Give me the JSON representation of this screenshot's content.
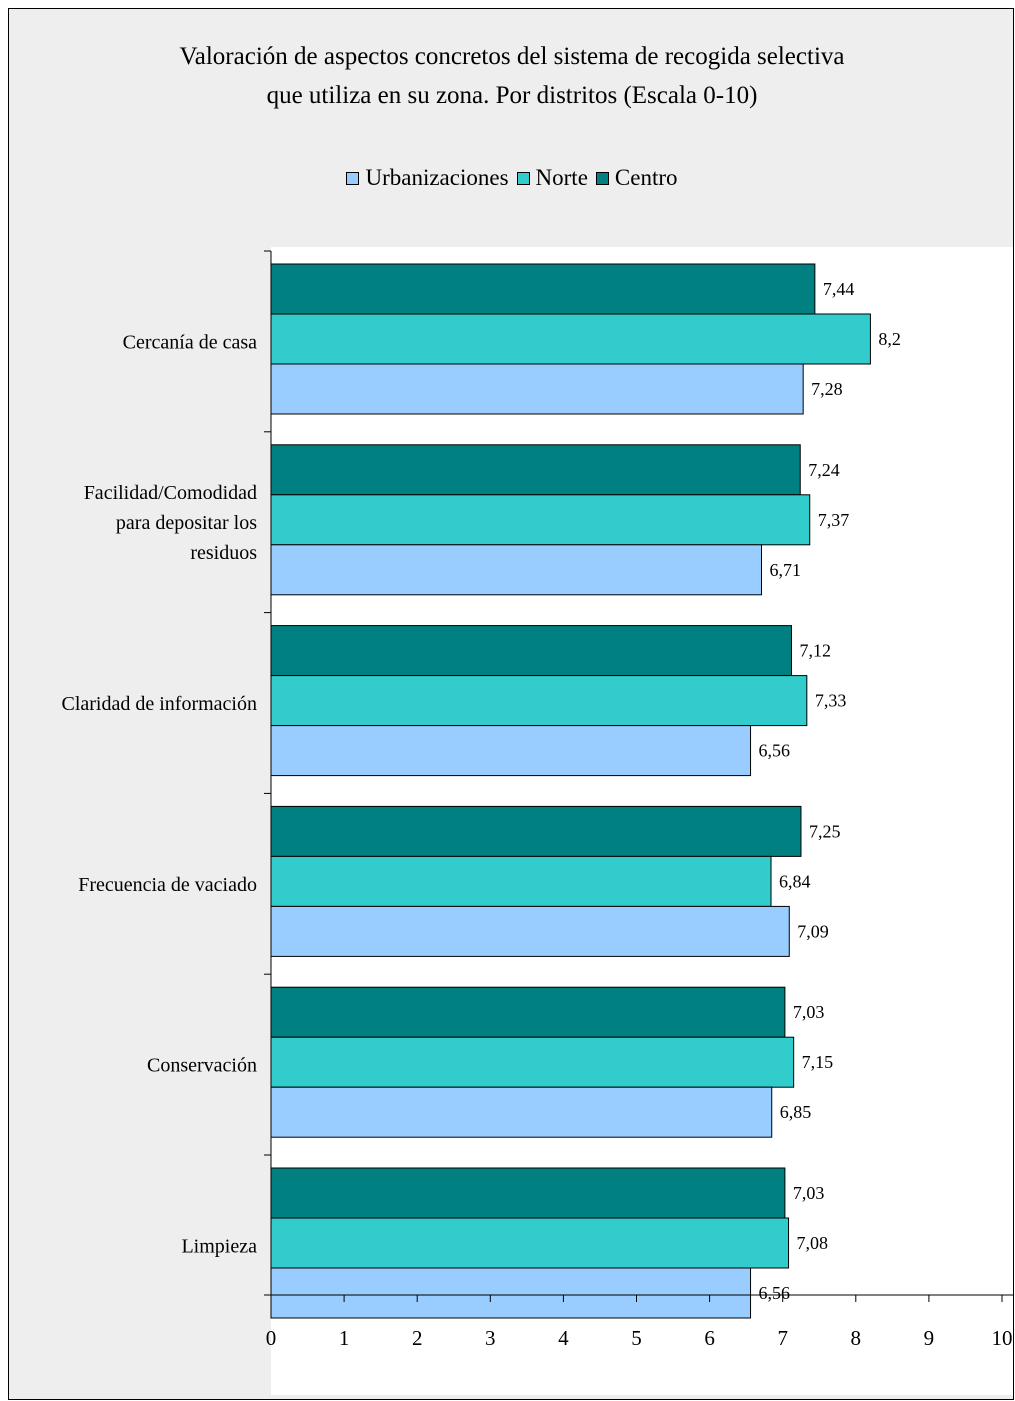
{
  "chart_data": {
    "type": "bar",
    "orientation": "horizontal",
    "title": "Valoración de aspectos concretos del sistema de recogida selectiva\nque utiliza en su zona.  Por distritos (Escala 0-10)",
    "categories": [
      "Cercanía de casa",
      "Facilidad/Comodidad para depositar los residuos",
      "Claridad de información",
      "Frecuencia de vaciado",
      "Conservación",
      "Limpieza"
    ],
    "category_lines": [
      [
        "Cercanía de casa"
      ],
      [
        "Facilidad/Comodidad",
        "para depositar los",
        "residuos"
      ],
      [
        "Claridad de información"
      ],
      [
        "Frecuencia de vaciado"
      ],
      [
        "Conservación"
      ],
      [
        "Limpieza"
      ]
    ],
    "series": [
      {
        "name": "Urbanizaciones",
        "color": "#99ccff",
        "values": [
          7.28,
          6.71,
          6.56,
          7.09,
          6.85,
          6.56
        ],
        "labels": [
          "7,28",
          "6,71",
          "6,56",
          "7,09",
          "6,85",
          "6,56"
        ]
      },
      {
        "name": "Norte",
        "color": "#33cccc",
        "values": [
          8.2,
          7.37,
          7.33,
          6.84,
          7.15,
          7.08
        ],
        "labels": [
          "8,2",
          "7,37",
          "7,33",
          "6,84",
          "7,15",
          "7,08"
        ]
      },
      {
        "name": "Centro",
        "color": "#008080",
        "values": [
          7.44,
          7.24,
          7.12,
          7.25,
          7.03,
          7.03
        ],
        "labels": [
          "7,44",
          "7,24",
          "7,12",
          "7,25",
          "7,03",
          "7,03"
        ]
      }
    ],
    "xlim": [
      0,
      10
    ],
    "xticks": [
      "0",
      "1",
      "2",
      "3",
      "4",
      "5",
      "6",
      "7",
      "8",
      "9",
      "10"
    ],
    "legend_position": "top",
    "grid": false,
    "background": "#eeeeee",
    "plot_background": "#ffffff"
  }
}
